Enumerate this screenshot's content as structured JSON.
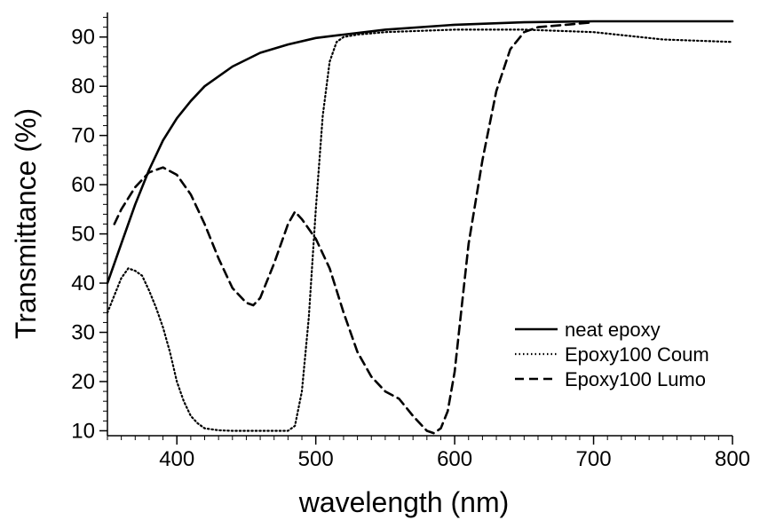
{
  "chart_data": {
    "type": "line",
    "xlabel": "wavelength (nm)",
    "ylabel": "Transmittance (%)",
    "xlim": [
      350,
      800
    ],
    "ylim": [
      9,
      95
    ],
    "xticks": [
      400,
      500,
      600,
      700,
      800
    ],
    "xtick_labels": [
      "400",
      "500",
      "600",
      "700",
      "800"
    ],
    "yticks": [
      10,
      20,
      30,
      40,
      50,
      60,
      70,
      80,
      90
    ],
    "ytick_labels": [
      "10",
      "20",
      "30",
      "40",
      "50",
      "60",
      "70",
      "80",
      "90"
    ],
    "grid": false,
    "legend_position": "bottom-right",
    "series": [
      {
        "name": "neat epoxy",
        "style": "solid",
        "x": [
          350,
          360,
          370,
          380,
          390,
          400,
          410,
          420,
          440,
          460,
          480,
          500,
          520,
          550,
          600,
          650,
          700,
          750,
          800
        ],
        "y": [
          40,
          48,
          56,
          63,
          69,
          73.5,
          77,
          80,
          84,
          86.8,
          88.5,
          89.8,
          90.5,
          91.5,
          92.5,
          93,
          93.2,
          93.2,
          93.2
        ]
      },
      {
        "name": "Epoxy100 Coum",
        "style": "dotted",
        "x": [
          350,
          355,
          360,
          365,
          370,
          375,
          380,
          385,
          390,
          395,
          400,
          405,
          410,
          415,
          420,
          430,
          440,
          450,
          460,
          470,
          480,
          485,
          490,
          495,
          500,
          505,
          510,
          515,
          520,
          530,
          550,
          600,
          650,
          700,
          750,
          800
        ],
        "y": [
          34,
          37.5,
          41,
          43,
          42.5,
          41.5,
          38.5,
          35,
          31,
          26,
          20,
          16,
          13,
          11.5,
          10.5,
          10.1,
          10,
          10,
          10,
          10,
          10,
          11,
          18,
          33,
          55,
          74,
          85,
          89,
          90,
          90.5,
          91,
          91.5,
          91.5,
          91,
          89.5,
          89
        ]
      },
      {
        "name": "Epoxy100 Lumo",
        "style": "dashed",
        "x": [
          355,
          360,
          370,
          380,
          390,
          400,
          410,
          420,
          430,
          440,
          450,
          455,
          460,
          470,
          480,
          485,
          490,
          500,
          510,
          520,
          530,
          540,
          550,
          560,
          570,
          580,
          585,
          590,
          595,
          600,
          605,
          610,
          620,
          630,
          640,
          650,
          660,
          680,
          700
        ],
        "y": [
          52,
          55,
          59.5,
          62.5,
          63.5,
          62,
          58,
          52,
          45,
          39,
          36,
          35.5,
          37,
          44,
          52,
          54.5,
          53,
          49,
          43,
          34,
          26,
          21,
          18,
          16.5,
          13,
          10,
          9.5,
          10.5,
          14,
          22,
          35,
          48,
          65,
          79,
          87.5,
          91,
          92,
          92.5,
          93
        ]
      }
    ]
  }
}
